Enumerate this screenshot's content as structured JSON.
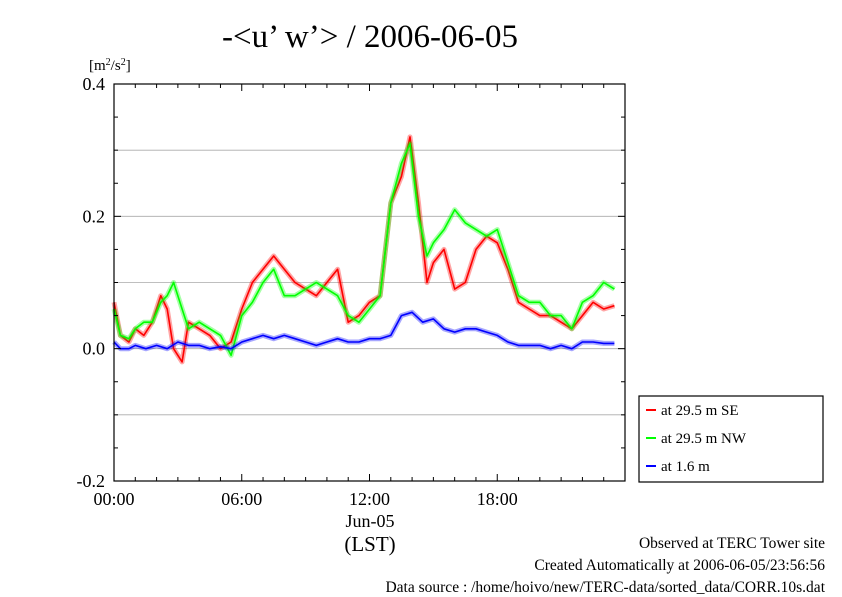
{
  "chart_data": {
    "type": "line",
    "title": "-<u’ w’> / 2006-06-05",
    "ylabel": "[m²/s²]",
    "ylabel_parts": {
      "base": "[m",
      "sup1": "2",
      "mid": "/s",
      "sup2": "2",
      "end": "]"
    },
    "xlabel": "(LST)",
    "xlim": [
      0,
      24
    ],
    "ylim": [
      -0.2,
      0.4
    ],
    "grid": true,
    "legend_position": "bottom-right-outside",
    "x_ticks": [
      {
        "value": 0,
        "label": "00:00"
      },
      {
        "value": 6,
        "label": "06:00"
      },
      {
        "value": 12,
        "label": "12:00"
      },
      {
        "value": 18,
        "label": "18:00"
      }
    ],
    "x_date_label": "Jun-05",
    "y_ticks": [
      {
        "value": -0.2,
        "label": "-0.2"
      },
      {
        "value": 0.0,
        "label": "0.0"
      },
      {
        "value": 0.2,
        "label": "0.2"
      },
      {
        "value": 0.4,
        "label": "0.4"
      }
    ],
    "series": [
      {
        "name": "at 29.5 m SE",
        "color": "#ff0000",
        "points": [
          [
            0,
            0.07
          ],
          [
            0.3,
            0.02
          ],
          [
            0.7,
            0.01
          ],
          [
            1,
            0.03
          ],
          [
            1.4,
            0.02
          ],
          [
            1.8,
            0.04
          ],
          [
            2.2,
            0.08
          ],
          [
            2.5,
            0.06
          ],
          [
            2.8,
            0.0
          ],
          [
            3.2,
            -0.02
          ],
          [
            3.5,
            0.04
          ],
          [
            4,
            0.03
          ],
          [
            4.5,
            0.02
          ],
          [
            5,
            0.0
          ],
          [
            5.5,
            0.01
          ],
          [
            6,
            0.06
          ],
          [
            6.5,
            0.1
          ],
          [
            7,
            0.12
          ],
          [
            7.5,
            0.14
          ],
          [
            8,
            0.12
          ],
          [
            8.5,
            0.1
          ],
          [
            9,
            0.09
          ],
          [
            9.5,
            0.08
          ],
          [
            10,
            0.1
          ],
          [
            10.5,
            0.12
          ],
          [
            11,
            0.04
          ],
          [
            11.5,
            0.05
          ],
          [
            12,
            0.07
          ],
          [
            12.5,
            0.08
          ],
          [
            13,
            0.22
          ],
          [
            13.5,
            0.26
          ],
          [
            13.9,
            0.32
          ],
          [
            14.3,
            0.22
          ],
          [
            14.7,
            0.1
          ],
          [
            15,
            0.13
          ],
          [
            15.5,
            0.15
          ],
          [
            16,
            0.09
          ],
          [
            16.5,
            0.1
          ],
          [
            17,
            0.15
          ],
          [
            17.5,
            0.17
          ],
          [
            18,
            0.16
          ],
          [
            18.5,
            0.12
          ],
          [
            19,
            0.07
          ],
          [
            19.5,
            0.06
          ],
          [
            20,
            0.05
          ],
          [
            20.5,
            0.05
          ],
          [
            21,
            0.04
          ],
          [
            21.5,
            0.03
          ],
          [
            22,
            0.05
          ],
          [
            22.5,
            0.07
          ],
          [
            23,
            0.06
          ],
          [
            23.5,
            0.065
          ]
        ]
      },
      {
        "name": "at 29.5 m NW",
        "color": "#00ff00",
        "points": [
          [
            0,
            0.06
          ],
          [
            0.3,
            0.02
          ],
          [
            0.7,
            0.015
          ],
          [
            1,
            0.03
          ],
          [
            1.4,
            0.04
          ],
          [
            1.8,
            0.04
          ],
          [
            2.2,
            0.07
          ],
          [
            2.5,
            0.08
          ],
          [
            2.8,
            0.1
          ],
          [
            3.2,
            0.06
          ],
          [
            3.5,
            0.03
          ],
          [
            4,
            0.04
          ],
          [
            4.5,
            0.03
          ],
          [
            5,
            0.02
          ],
          [
            5.5,
            -0.01
          ],
          [
            6,
            0.05
          ],
          [
            6.5,
            0.07
          ],
          [
            7,
            0.1
          ],
          [
            7.5,
            0.12
          ],
          [
            8,
            0.08
          ],
          [
            8.5,
            0.08
          ],
          [
            9,
            0.09
          ],
          [
            9.5,
            0.1
          ],
          [
            10,
            0.09
          ],
          [
            10.5,
            0.08
          ],
          [
            11,
            0.05
          ],
          [
            11.5,
            0.04
          ],
          [
            12,
            0.06
          ],
          [
            12.5,
            0.08
          ],
          [
            13,
            0.22
          ],
          [
            13.5,
            0.28
          ],
          [
            13.9,
            0.31
          ],
          [
            14.3,
            0.2
          ],
          [
            14.7,
            0.14
          ],
          [
            15,
            0.16
          ],
          [
            15.5,
            0.18
          ],
          [
            16,
            0.21
          ],
          [
            16.5,
            0.19
          ],
          [
            17,
            0.18
          ],
          [
            17.5,
            0.17
          ],
          [
            18,
            0.18
          ],
          [
            18.5,
            0.13
          ],
          [
            19,
            0.08
          ],
          [
            19.5,
            0.07
          ],
          [
            20,
            0.07
          ],
          [
            20.5,
            0.05
          ],
          [
            21,
            0.05
          ],
          [
            21.5,
            0.03
          ],
          [
            22,
            0.07
          ],
          [
            22.5,
            0.08
          ],
          [
            23,
            0.1
          ],
          [
            23.5,
            0.09
          ]
        ]
      },
      {
        "name": "at 1.6 m",
        "color": "#0000ff",
        "points": [
          [
            0,
            0.01
          ],
          [
            0.3,
            0.0
          ],
          [
            0.7,
            0.0
          ],
          [
            1,
            0.005
          ],
          [
            1.5,
            0.0
          ],
          [
            2,
            0.005
          ],
          [
            2.5,
            0.0
          ],
          [
            3,
            0.01
          ],
          [
            3.5,
            0.005
          ],
          [
            4,
            0.005
          ],
          [
            4.5,
            0.0
          ],
          [
            5,
            0.003
          ],
          [
            5.5,
            0.0
          ],
          [
            6,
            0.01
          ],
          [
            6.5,
            0.015
          ],
          [
            7,
            0.02
          ],
          [
            7.5,
            0.015
          ],
          [
            8,
            0.02
          ],
          [
            8.5,
            0.015
          ],
          [
            9,
            0.01
          ],
          [
            9.5,
            0.005
          ],
          [
            10,
            0.01
          ],
          [
            10.5,
            0.015
          ],
          [
            11,
            0.01
          ],
          [
            11.5,
            0.01
          ],
          [
            12,
            0.015
          ],
          [
            12.5,
            0.015
          ],
          [
            13,
            0.02
          ],
          [
            13.5,
            0.05
          ],
          [
            14,
            0.055
          ],
          [
            14.5,
            0.04
          ],
          [
            15,
            0.045
          ],
          [
            15.5,
            0.03
          ],
          [
            16,
            0.025
          ],
          [
            16.5,
            0.03
          ],
          [
            17,
            0.03
          ],
          [
            17.5,
            0.025
          ],
          [
            18,
            0.02
          ],
          [
            18.5,
            0.01
          ],
          [
            19,
            0.005
          ],
          [
            19.5,
            0.005
          ],
          [
            20,
            0.005
          ],
          [
            20.5,
            0.0
          ],
          [
            21,
            0.005
          ],
          [
            21.5,
            0.0
          ],
          [
            22,
            0.01
          ],
          [
            22.5,
            0.01
          ],
          [
            23,
            0.008
          ],
          [
            23.5,
            0.008
          ]
        ]
      }
    ]
  },
  "footer": {
    "line1": "Observed at TERC Tower site",
    "line2": "Created Automatically at 2006-06-05/23:56:56",
    "line3": "Data source : /home/hoivo/new/TERC-data/sorted_data/CORR.10s.dat"
  }
}
